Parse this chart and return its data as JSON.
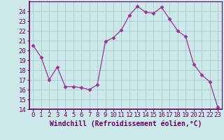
{
  "x": [
    0,
    1,
    2,
    3,
    4,
    5,
    6,
    7,
    8,
    9,
    10,
    11,
    12,
    13,
    14,
    15,
    16,
    17,
    18,
    19,
    20,
    21,
    22,
    23
  ],
  "y": [
    20.5,
    19.3,
    17.0,
    18.3,
    16.3,
    16.3,
    16.2,
    16.0,
    16.5,
    20.9,
    21.3,
    22.1,
    23.6,
    24.5,
    23.9,
    23.8,
    24.4,
    23.2,
    22.0,
    21.4,
    18.6,
    17.5,
    16.8,
    14.2
  ],
  "line_color": "#993399",
  "marker": "D",
  "marker_size": 2.5,
  "bg_color": "#cce8e8",
  "grid_color": "#aacccc",
  "xlabel": "Windchill (Refroidissement éolien,°C)",
  "xlabel_fontsize": 7,
  "tick_fontsize": 6.5,
  "ylim": [
    14,
    25
  ],
  "yticks": [
    14,
    15,
    16,
    17,
    18,
    19,
    20,
    21,
    22,
    23,
    24
  ],
  "xlim": [
    -0.5,
    23.5
  ],
  "xticks": [
    0,
    1,
    2,
    3,
    4,
    5,
    6,
    7,
    8,
    9,
    10,
    11,
    12,
    13,
    14,
    15,
    16,
    17,
    18,
    19,
    20,
    21,
    22,
    23
  ],
  "spine_color": "#660066",
  "text_color": "#660066"
}
